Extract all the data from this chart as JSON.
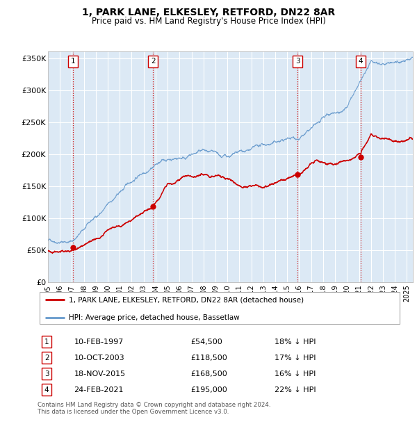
{
  "title1": "1, PARK LANE, ELKESLEY, RETFORD, DN22 8AR",
  "title2": "Price paid vs. HM Land Registry's House Price Index (HPI)",
  "background_color": "#ffffff",
  "plot_bg_color": "#dce9f5",
  "grid_color": "#ffffff",
  "transactions": [
    {
      "num": 1,
      "date_x": 1997.11,
      "price": 54500,
      "date_str": "10-FEB-1997",
      "pct": "18% ↓ HPI"
    },
    {
      "num": 2,
      "date_x": 2003.78,
      "price": 118500,
      "date_str": "10-OCT-2003",
      "pct": "17% ↓ HPI"
    },
    {
      "num": 3,
      "date_x": 2015.88,
      "price": 168500,
      "date_str": "18-NOV-2015",
      "pct": "16% ↓ HPI"
    },
    {
      "num": 4,
      "date_x": 2021.15,
      "price": 195000,
      "date_str": "24-FEB-2021",
      "pct": "22% ↓ HPI"
    }
  ],
  "legend1": "1, PARK LANE, ELKESLEY, RETFORD, DN22 8AR (detached house)",
  "legend2": "HPI: Average price, detached house, Bassetlaw",
  "footer1": "Contains HM Land Registry data © Crown copyright and database right 2024.",
  "footer2": "This data is licensed under the Open Government Licence v3.0.",
  "xlim": [
    1995,
    2025.5
  ],
  "ylim": [
    0,
    360000
  ],
  "yticks": [
    0,
    50000,
    100000,
    150000,
    200000,
    250000,
    300000,
    350000
  ],
  "ytick_labels": [
    "£0",
    "£50K",
    "£100K",
    "£150K",
    "£200K",
    "£250K",
    "£300K",
    "£350K"
  ],
  "xticks": [
    1995,
    1996,
    1997,
    1998,
    1999,
    2000,
    2001,
    2002,
    2003,
    2004,
    2005,
    2006,
    2007,
    2008,
    2009,
    2010,
    2011,
    2012,
    2013,
    2014,
    2015,
    2016,
    2017,
    2018,
    2019,
    2020,
    2021,
    2022,
    2023,
    2024,
    2025
  ],
  "red_line_color": "#cc0000",
  "blue_line_color": "#6699cc",
  "dot_color": "#cc0000",
  "vline_color": "#cc0000",
  "label_box_color": "#ffffff",
  "label_box_edge": "#cc0000"
}
